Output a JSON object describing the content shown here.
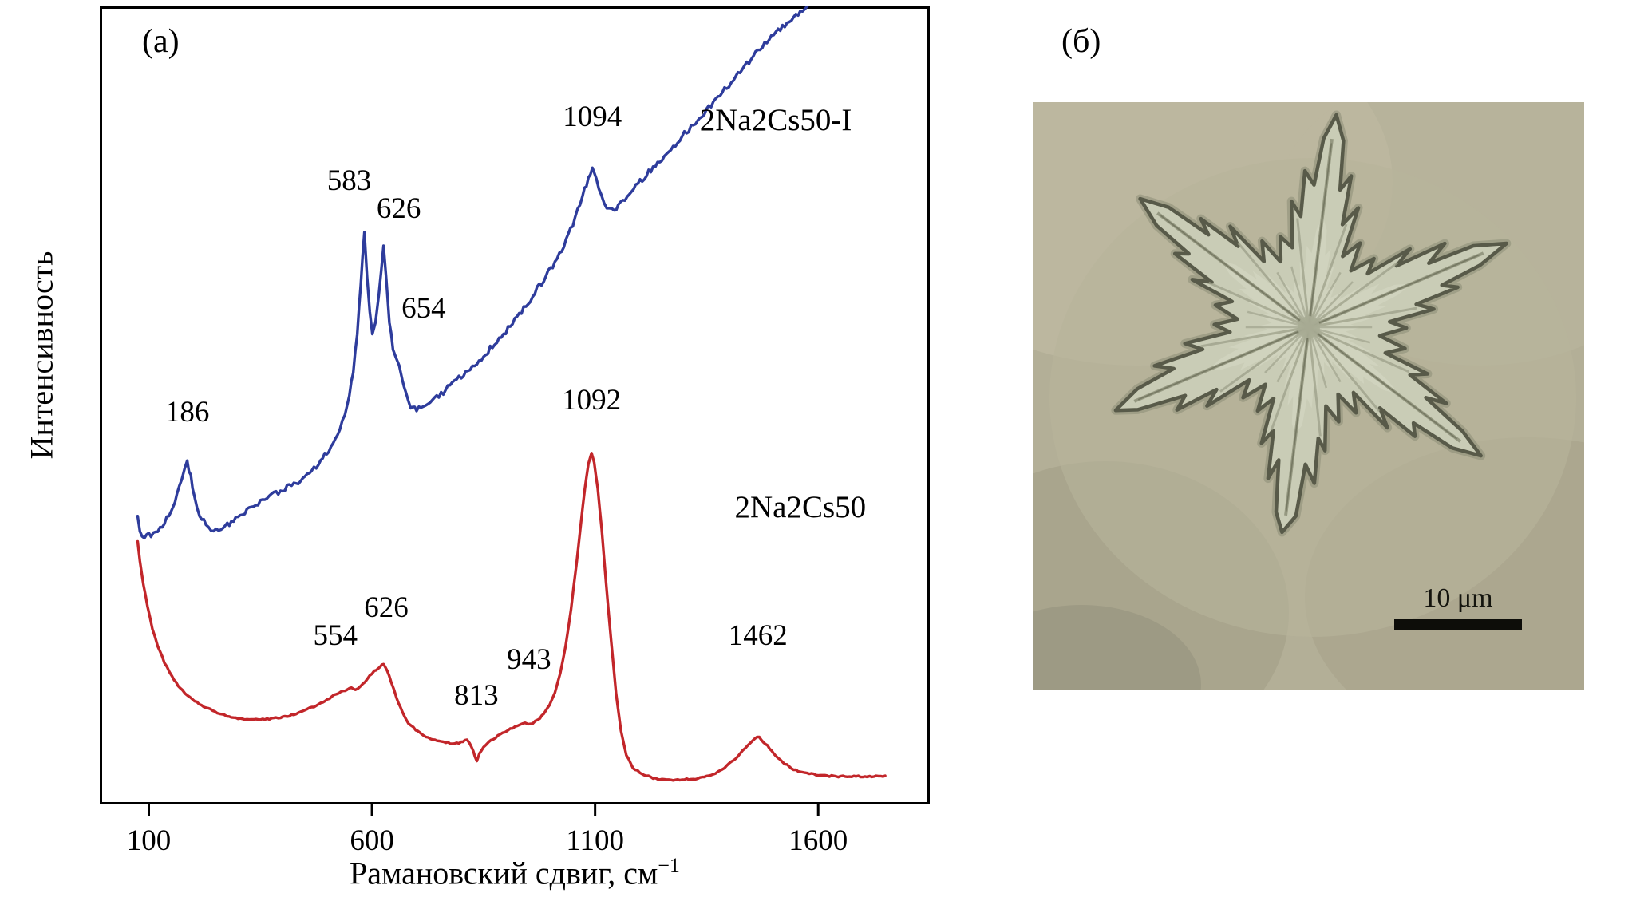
{
  "panels": {
    "a": {
      "label": "(а)"
    },
    "b": {
      "label": "(б)",
      "scale_bar": "10 μm"
    }
  },
  "chart_data": {
    "type": "line",
    "title": "",
    "xlabel": "Рамановский сдвиг, см",
    "xlabel_sup": "−1",
    "ylabel": "Интенсивность",
    "xlim": [
      -10,
      1850
    ],
    "ylim": [
      0,
      100
    ],
    "xticks": [
      100,
      600,
      1100,
      1600
    ],
    "grid": false,
    "frame": true,
    "legend_position": "inline",
    "series": [
      {
        "name": "2Na2Cs50-I",
        "color": "#2e3c9c",
        "noise": 0.35,
        "label_pos": {
          "x": 1505,
          "y": 84.5
        },
        "peaks": [
          {
            "label": "186",
            "x": 186,
            "y": 48
          },
          {
            "label": "583",
            "x": 549,
            "y": 77
          },
          {
            "label": "626",
            "x": 660,
            "y": 73.5
          },
          {
            "label": "654",
            "x": 716,
            "y": 61
          },
          {
            "label": "1094",
            "x": 1094,
            "y": 85
          }
        ],
        "points": [
          [
            75,
            36
          ],
          [
            80,
            34.2
          ],
          [
            90,
            33.6
          ],
          [
            105,
            33.8
          ],
          [
            120,
            34.4
          ],
          [
            135,
            35.4
          ],
          [
            150,
            36.8
          ],
          [
            163,
            38.6
          ],
          [
            174,
            40.6
          ],
          [
            186,
            43
          ],
          [
            194,
            41
          ],
          [
            202,
            38.6
          ],
          [
            214,
            36.4
          ],
          [
            228,
            35
          ],
          [
            245,
            34.4
          ],
          [
            262,
            34.6
          ],
          [
            285,
            35.4
          ],
          [
            310,
            36.4
          ],
          [
            335,
            37.4
          ],
          [
            360,
            38.3
          ],
          [
            385,
            39
          ],
          [
            410,
            39.7
          ],
          [
            435,
            40.5
          ],
          [
            460,
            41.6
          ],
          [
            485,
            43
          ],
          [
            508,
            44.8
          ],
          [
            528,
            47
          ],
          [
            545,
            50
          ],
          [
            558,
            54
          ],
          [
            567,
            59
          ],
          [
            575,
            65.5
          ],
          [
            583,
            72
          ],
          [
            589,
            66.5
          ],
          [
            595,
            61.5
          ],
          [
            601,
            59.2
          ],
          [
            608,
            60.2
          ],
          [
            615,
            63.6
          ],
          [
            621,
            67
          ],
          [
            626,
            70
          ],
          [
            632,
            65.5
          ],
          [
            639,
            60.5
          ],
          [
            647,
            57.2
          ],
          [
            654,
            56
          ],
          [
            661,
            55
          ],
          [
            668,
            53.2
          ],
          [
            676,
            51.4
          ],
          [
            687,
            50
          ],
          [
            700,
            49.4
          ],
          [
            715,
            49.8
          ],
          [
            735,
            50.6
          ],
          [
            760,
            51.7
          ],
          [
            785,
            52.9
          ],
          [
            810,
            54.1
          ],
          [
            835,
            55.4
          ],
          [
            860,
            56.8
          ],
          [
            885,
            58.3
          ],
          [
            910,
            59.9
          ],
          [
            935,
            61.7
          ],
          [
            960,
            63.7
          ],
          [
            985,
            65.8
          ],
          [
            1010,
            68
          ],
          [
            1035,
            70.6
          ],
          [
            1055,
            73.4
          ],
          [
            1072,
            76.4
          ],
          [
            1085,
            78.4
          ],
          [
            1094,
            79.5
          ],
          [
            1103,
            78.2
          ],
          [
            1114,
            76.2
          ],
          [
            1126,
            74.9
          ],
          [
            1138,
            74.5
          ],
          [
            1152,
            74.9
          ],
          [
            1172,
            76.1
          ],
          [
            1196,
            77.7
          ],
          [
            1225,
            79.5
          ],
          [
            1255,
            81.3
          ],
          [
            1285,
            83.1
          ],
          [
            1315,
            84.9
          ],
          [
            1345,
            86.7
          ],
          [
            1375,
            88.5
          ],
          [
            1405,
            90.5
          ],
          [
            1435,
            92.5
          ],
          [
            1465,
            94.4
          ],
          [
            1495,
            96.1
          ],
          [
            1525,
            97.6
          ],
          [
            1555,
            99
          ],
          [
            1585,
            100.4
          ],
          [
            1615,
            101.8
          ],
          [
            1645,
            103.2
          ]
        ]
      },
      {
        "name": "2Na2Cs50",
        "color": "#c2262a",
        "noise": 0.1,
        "label_pos": {
          "x": 1560,
          "y": 36
        },
        "peaks": [
          {
            "label": "554",
            "x": 518,
            "y": 20
          },
          {
            "label": "626",
            "x": 632,
            "y": 23.5
          },
          {
            "label": "813",
            "x": 834,
            "y": 12.5
          },
          {
            "label": "943",
            "x": 952,
            "y": 17
          },
          {
            "label": "1092",
            "x": 1092,
            "y": 49.5
          },
          {
            "label": "1462",
            "x": 1465,
            "y": 20
          }
        ],
        "points": [
          [
            75,
            33
          ],
          [
            80,
            30.5
          ],
          [
            88,
            27.5
          ],
          [
            97,
            24.8
          ],
          [
            108,
            22
          ],
          [
            120,
            19.8
          ],
          [
            135,
            17.8
          ],
          [
            152,
            16
          ],
          [
            170,
            14.6
          ],
          [
            192,
            13.4
          ],
          [
            218,
            12.4
          ],
          [
            248,
            11.6
          ],
          [
            280,
            11
          ],
          [
            315,
            10.7
          ],
          [
            350,
            10.6
          ],
          [
            385,
            10.8
          ],
          [
            420,
            11.2
          ],
          [
            455,
            11.9
          ],
          [
            485,
            12.7
          ],
          [
            510,
            13.5
          ],
          [
            530,
            14.1
          ],
          [
            545,
            14.4
          ],
          [
            554,
            14.6
          ],
          [
            563,
            14.3
          ],
          [
            575,
            14.8
          ],
          [
            590,
            15.8
          ],
          [
            605,
            16.7
          ],
          [
            618,
            17.3
          ],
          [
            626,
            17.6
          ],
          [
            634,
            16.8
          ],
          [
            643,
            15.4
          ],
          [
            655,
            13.4
          ],
          [
            668,
            11.6
          ],
          [
            682,
            10.2
          ],
          [
            698,
            9.3
          ],
          [
            716,
            8.6
          ],
          [
            736,
            8.1
          ],
          [
            756,
            7.8
          ],
          [
            775,
            7.7
          ],
          [
            790,
            7.7
          ],
          [
            800,
            7.8
          ],
          [
            808,
            8
          ],
          [
            813,
            8.2
          ],
          [
            819,
            7.6
          ],
          [
            827,
            6.6
          ],
          [
            835,
            5.4
          ],
          [
            841,
            6.4
          ],
          [
            850,
            7.2
          ],
          [
            862,
            7.8
          ],
          [
            877,
            8.4
          ],
          [
            893,
            9
          ],
          [
            910,
            9.5
          ],
          [
            926,
            9.9
          ],
          [
            938,
            10.2
          ],
          [
            943,
            10.3
          ],
          [
            950,
            10.1
          ],
          [
            960,
            10.2
          ],
          [
            972,
            10.6
          ],
          [
            985,
            11.3
          ],
          [
            998,
            12.4
          ],
          [
            1010,
            14
          ],
          [
            1022,
            16.4
          ],
          [
            1034,
            19.8
          ],
          [
            1046,
            24.4
          ],
          [
            1058,
            30
          ],
          [
            1068,
            35.2
          ],
          [
            1077,
            39.6
          ],
          [
            1085,
            42.6
          ],
          [
            1092,
            44
          ],
          [
            1098,
            42.8
          ],
          [
            1106,
            39.6
          ],
          [
            1115,
            34.4
          ],
          [
            1125,
            27.6
          ],
          [
            1136,
            20.4
          ],
          [
            1147,
            14
          ],
          [
            1158,
            9.2
          ],
          [
            1170,
            6.2
          ],
          [
            1185,
            4.6
          ],
          [
            1205,
            3.8
          ],
          [
            1230,
            3.3
          ],
          [
            1260,
            3.1
          ],
          [
            1290,
            3.1
          ],
          [
            1320,
            3.2
          ],
          [
            1345,
            3.4
          ],
          [
            1370,
            3.9
          ],
          [
            1395,
            4.8
          ],
          [
            1420,
            6
          ],
          [
            1442,
            7.4
          ],
          [
            1458,
            8.3
          ],
          [
            1468,
            8.4
          ],
          [
            1482,
            7.6
          ],
          [
            1500,
            6.4
          ],
          [
            1520,
            5.3
          ],
          [
            1545,
            4.4
          ],
          [
            1575,
            3.9
          ],
          [
            1615,
            3.6
          ],
          [
            1660,
            3.5
          ],
          [
            1705,
            3.5
          ],
          [
            1750,
            3.6
          ]
        ]
      }
    ]
  }
}
